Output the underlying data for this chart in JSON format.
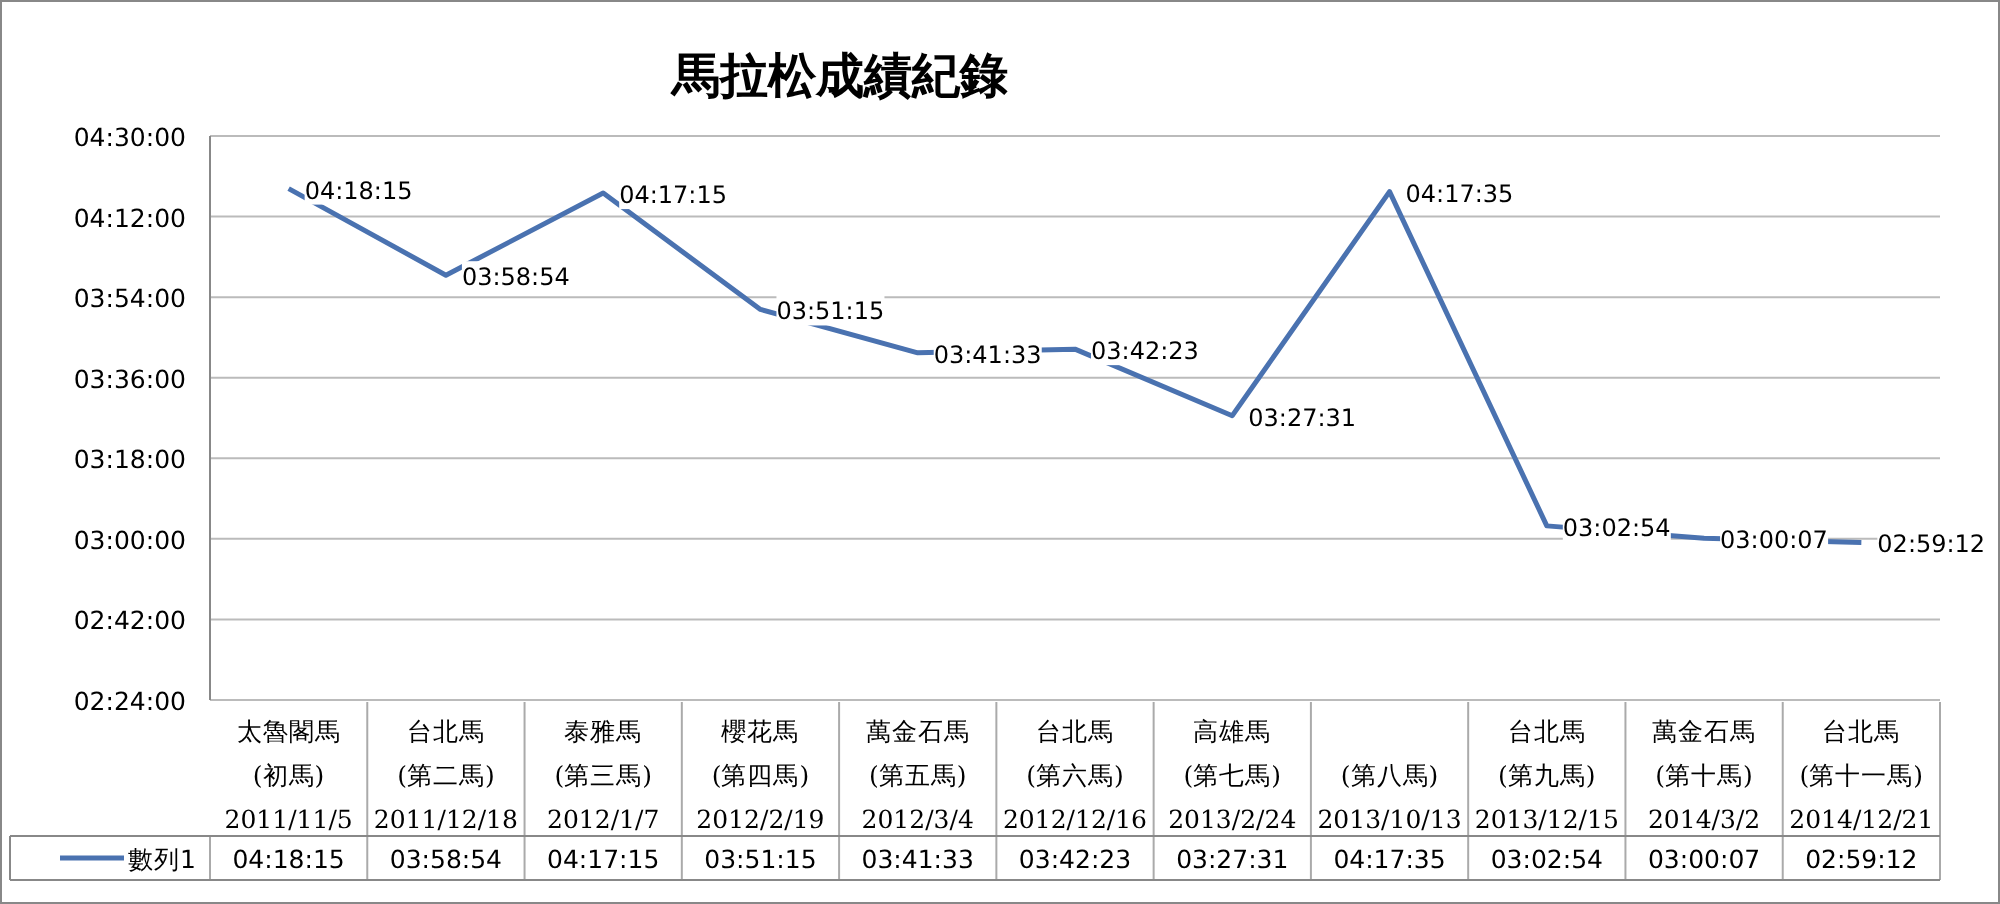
{
  "chart_data": {
    "type": "line",
    "title": "馬拉松成績紀錄",
    "categories": [
      "太魯閣馬\n(初馬)\n2011/11/5",
      "台北馬\n(第二馬)\n2011/12/18",
      "泰雅馬\n(第三馬)\n2012/1/7",
      "櫻花馬\n(第四馬)\n2012/2/19",
      "萬金石馬\n(第五馬)\n2012/3/4",
      "台北馬\n(第六馬)\n2012/12/16",
      "高雄馬\n(第七馬)\n2013/2/24",
      "(第八馬)\n2013/10/13",
      "台北馬\n(第九馬)\n2013/12/15",
      "萬金石馬\n(第十馬)\n2014/3/2",
      "台北馬\n(第十一馬)\n2014/12/21"
    ],
    "series": [
      {
        "name": "數列1",
        "color": "#4a72b0",
        "values": [
          4.30417,
          3.98167,
          4.2875,
          3.85417,
          3.6925,
          3.70639,
          3.45861,
          4.29306,
          3.04833,
          3.00194,
          2.98667
        ],
        "value_labels": [
          "04:18:15",
          "03:58:54",
          "04:17:15",
          "03:51:15",
          "03:41:33",
          "03:42:23",
          "03:27:31",
          "04:17:35",
          "03:02:54",
          "03:00:07",
          "02:59:12"
        ]
      }
    ],
    "ylim": [
      2.4,
      4.5
    ],
    "yticks": [
      {
        "value": 2.4,
        "label": "02:24:00"
      },
      {
        "value": 2.7,
        "label": "02:42:00"
      },
      {
        "value": 3.0,
        "label": "03:00:00"
      },
      {
        "value": 3.3,
        "label": "03:18:00"
      },
      {
        "value": 3.6,
        "label": "03:36:00"
      },
      {
        "value": 3.9,
        "label": "03:54:00"
      },
      {
        "value": 4.2,
        "label": "04:12:00"
      },
      {
        "value": 4.5,
        "label": "04:30:00"
      }
    ],
    "grid": "y",
    "marker": "none",
    "line_style": "solid",
    "legend": "bottom left"
  }
}
